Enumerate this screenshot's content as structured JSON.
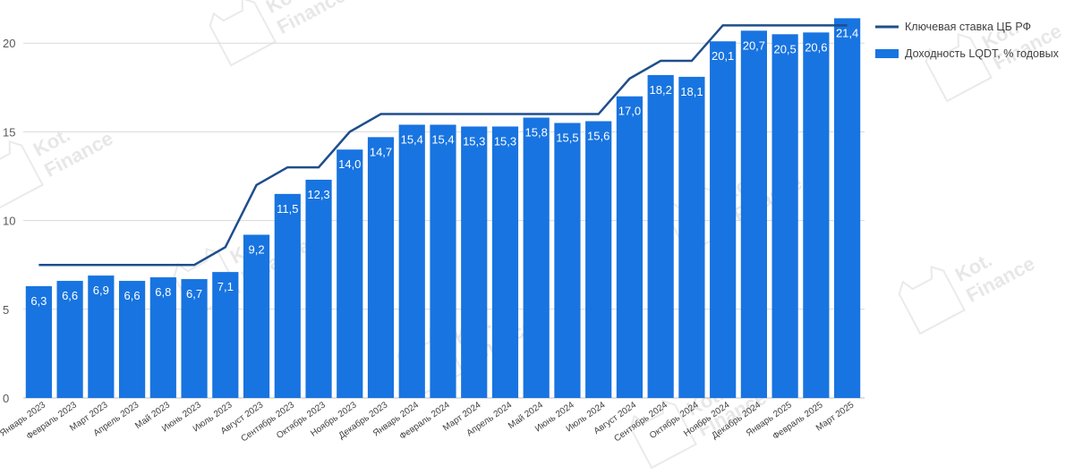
{
  "watermark": {
    "brand": "Kot.",
    "sub": "Finance"
  },
  "chart_data": {
    "type": "bar",
    "title": "",
    "xlabel": "",
    "ylabel": "",
    "ylim": [
      0,
      22
    ],
    "yticks": [
      0,
      5,
      10,
      15,
      20
    ],
    "grid": true,
    "legend_position": "top-right",
    "categories": [
      "Январь 2023",
      "Февраль 2023",
      "Март 2023",
      "Апрель 2023",
      "Май 2023",
      "Июнь 2023",
      "Июль 2023",
      "Август 2023",
      "Сентябрь 2023",
      "Октябрь 2023",
      "Ноябрь 2023",
      "Декабрь 2023",
      "Январь 2024",
      "Февраль 2024",
      "Март 2024",
      "Апрель 2024",
      "Май 2024",
      "Июнь 2024",
      "Июль 2024",
      "Август 2024",
      "Сентябрь 2024",
      "Октябрь 2024",
      "Ноябрь 2024",
      "Декабрь 2024",
      "Январь 2025",
      "Февраль 2025",
      "Март 2025"
    ],
    "series": [
      {
        "name": "Ключевая ставка ЦБ РФ",
        "type": "line",
        "color": "#1f4e8c",
        "values": [
          7.5,
          7.5,
          7.5,
          7.5,
          7.5,
          7.5,
          8.5,
          12,
          13,
          13,
          15,
          16,
          16,
          16,
          16,
          16,
          16,
          16,
          16,
          18,
          19,
          19,
          21,
          21,
          21,
          21,
          21
        ]
      },
      {
        "name": "Доходность LQDT, % годовых",
        "type": "bar",
        "color": "#1874e0",
        "values": [
          6.3,
          6.6,
          6.9,
          6.6,
          6.8,
          6.7,
          7.1,
          9.2,
          11.5,
          12.3,
          14.0,
          14.7,
          15.4,
          15.4,
          15.3,
          15.3,
          15.8,
          15.5,
          15.6,
          17.0,
          18.2,
          18.1,
          20.1,
          20.7,
          20.5,
          20.6,
          21.4
        ],
        "labels": [
          "6,3",
          "6,6",
          "6,9",
          "6,6",
          "6,8",
          "6,7",
          "7,1",
          "9,2",
          "11,5",
          "12,3",
          "14,0",
          "14,7",
          "15,4",
          "15,4",
          "15,3",
          "15,3",
          "15,8",
          "15,5",
          "15,6",
          "17,0",
          "18,2",
          "18,1",
          "20,1",
          "20,7",
          "20,5",
          "20,6",
          "21,4"
        ]
      }
    ]
  }
}
